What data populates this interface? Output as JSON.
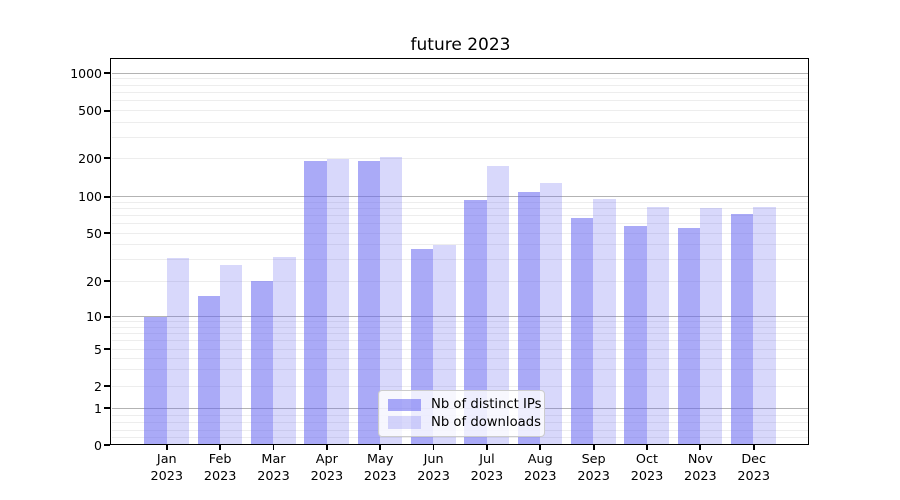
{
  "chart_data": {
    "type": "bar",
    "title": "future 2023",
    "categories": [
      "Jan 2023",
      "Feb 2023",
      "Mar 2023",
      "Apr 2023",
      "May 2023",
      "Jun 2023",
      "Jul 2023",
      "Aug 2023",
      "Sep 2023",
      "Oct 2023",
      "Nov 2023",
      "Dec 2023"
    ],
    "series": [
      {
        "name": "Nb of distinct IPs",
        "color": "rgba(100,100,240,0.55)",
        "values": [
          10,
          15,
          20,
          190,
          189,
          37,
          94,
          108,
          67,
          57,
          55,
          72
        ]
      },
      {
        "name": "Nb of downloads",
        "color": "rgba(100,100,240,0.25)",
        "values": [
          31,
          27,
          32,
          197,
          207,
          40,
          175,
          128,
          96,
          82,
          81,
          82
        ]
      }
    ],
    "xlabel": "",
    "ylabel": "",
    "yticks": [
      0,
      1,
      2,
      5,
      10,
      20,
      50,
      100,
      200,
      500,
      1000
    ],
    "scale": "symlog",
    "ylim": [
      0,
      1300
    ],
    "grid": true,
    "legend_position": "lower center",
    "colors": {
      "major_grid": "#b3b3b3",
      "minor_grid": "#ededed",
      "spine": "#000000",
      "background": "#ffffff"
    }
  }
}
